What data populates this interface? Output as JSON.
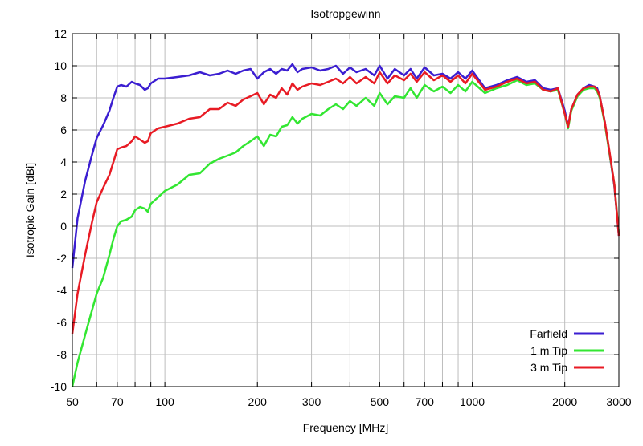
{
  "chart_data": {
    "type": "line",
    "title": "Isotropgewinn",
    "xlabel": "Frequency [MHz]",
    "ylabel": "Isotropic Gain [dBi]",
    "xscale": "log",
    "xlim": [
      50,
      3000
    ],
    "ylim": [
      -10,
      12
    ],
    "grid": true,
    "legend_position": "bottom-right",
    "x_ticks": [
      50,
      70,
      100,
      200,
      300,
      500,
      700,
      1000,
      2000,
      3000
    ],
    "x_tick_labels": [
      "50",
      "70",
      "100",
      "200",
      "300",
      "500",
      "700",
      "1000",
      "2000",
      "3000"
    ],
    "x_minor_grid": [
      60,
      80,
      90,
      400,
      600,
      800,
      900
    ],
    "y_ticks": [
      -10,
      -8,
      -6,
      -4,
      -2,
      0,
      2,
      4,
      6,
      8,
      10,
      12
    ],
    "series": [
      {
        "name": "Farfield",
        "color": "#3b1ed1",
        "x": [
          50,
          52,
          55,
          58,
          60,
          63,
          66,
          68,
          70,
          72,
          75,
          78,
          80,
          83,
          86,
          88,
          90,
          95,
          100,
          110,
          120,
          130,
          140,
          150,
          160,
          170,
          180,
          190,
          200,
          210,
          220,
          230,
          240,
          250,
          260,
          270,
          280,
          300,
          320,
          340,
          360,
          380,
          400,
          420,
          450,
          480,
          500,
          530,
          560,
          600,
          630,
          660,
          700,
          750,
          800,
          850,
          900,
          950,
          1000,
          1100,
          1200,
          1300,
          1400,
          1500,
          1600,
          1700,
          1800,
          1900,
          2000,
          2050,
          2100,
          2200,
          2300,
          2400,
          2500,
          2550,
          2600,
          2700,
          2800,
          2900,
          3000
        ],
        "y": [
          -2.6,
          0.5,
          2.8,
          4.5,
          5.5,
          6.3,
          7.2,
          8.0,
          8.7,
          8.8,
          8.7,
          9.0,
          8.9,
          8.8,
          8.5,
          8.6,
          8.9,
          9.2,
          9.2,
          9.3,
          9.4,
          9.6,
          9.4,
          9.5,
          9.7,
          9.5,
          9.7,
          9.8,
          9.2,
          9.6,
          9.8,
          9.5,
          9.8,
          9.7,
          10.1,
          9.6,
          9.8,
          9.9,
          9.7,
          9.8,
          10.0,
          9.5,
          9.9,
          9.6,
          9.8,
          9.4,
          10.0,
          9.2,
          9.8,
          9.4,
          9.8,
          9.2,
          9.9,
          9.4,
          9.5,
          9.2,
          9.6,
          9.2,
          9.7,
          8.6,
          8.8,
          9.1,
          9.3,
          9.0,
          9.1,
          8.6,
          8.5,
          8.6,
          7.2,
          6.2,
          7.3,
          8.2,
          8.6,
          8.8,
          8.7,
          8.6,
          8.1,
          6.5,
          4.5,
          2.5,
          -0.6
        ]
      },
      {
        "name": "1 m Tip",
        "color": "#33e632",
        "x": [
          50,
          52,
          55,
          58,
          60,
          63,
          66,
          68,
          70,
          72,
          75,
          78,
          80,
          83,
          86,
          88,
          90,
          95,
          100,
          110,
          120,
          130,
          140,
          150,
          160,
          170,
          180,
          190,
          200,
          210,
          220,
          230,
          240,
          250,
          260,
          270,
          280,
          300,
          320,
          340,
          360,
          380,
          400,
          420,
          450,
          480,
          500,
          530,
          560,
          600,
          630,
          660,
          700,
          750,
          800,
          850,
          900,
          950,
          1000,
          1100,
          1200,
          1300,
          1400,
          1500,
          1600,
          1700,
          1800,
          1900,
          2000,
          2050,
          2100,
          2200,
          2300,
          2400,
          2500,
          2550,
          2600,
          2700,
          2800,
          2900,
          3000
        ],
        "y": [
          -10.0,
          -8.5,
          -6.8,
          -5.2,
          -4.2,
          -3.2,
          -1.8,
          -0.8,
          0.0,
          0.3,
          0.4,
          0.6,
          1.0,
          1.2,
          1.1,
          0.9,
          1.4,
          1.8,
          2.2,
          2.6,
          3.2,
          3.3,
          3.9,
          4.2,
          4.4,
          4.6,
          5.0,
          5.3,
          5.6,
          5.0,
          5.7,
          5.6,
          6.2,
          6.3,
          6.8,
          6.4,
          6.7,
          7.0,
          6.9,
          7.3,
          7.6,
          7.3,
          7.8,
          7.5,
          8.0,
          7.5,
          8.3,
          7.6,
          8.1,
          8.0,
          8.6,
          8.0,
          8.8,
          8.4,
          8.7,
          8.3,
          8.8,
          8.4,
          9.0,
          8.3,
          8.6,
          8.8,
          9.1,
          8.8,
          8.9,
          8.5,
          8.4,
          8.5,
          7.0,
          6.1,
          7.2,
          8.1,
          8.5,
          8.6,
          8.6,
          8.4,
          8.0,
          6.4,
          4.5,
          2.6,
          -0.5
        ]
      },
      {
        "name": "3 m Tip",
        "color": "#e81b24",
        "x": [
          50,
          52,
          55,
          58,
          60,
          63,
          66,
          68,
          70,
          72,
          75,
          78,
          80,
          83,
          86,
          88,
          90,
          95,
          100,
          110,
          120,
          130,
          140,
          150,
          160,
          170,
          180,
          190,
          200,
          210,
          220,
          230,
          240,
          250,
          260,
          270,
          280,
          300,
          320,
          340,
          360,
          380,
          400,
          420,
          450,
          480,
          500,
          530,
          560,
          600,
          630,
          660,
          700,
          750,
          800,
          850,
          900,
          950,
          1000,
          1100,
          1200,
          1300,
          1400,
          1500,
          1600,
          1700,
          1800,
          1900,
          2000,
          2050,
          2100,
          2200,
          2300,
          2400,
          2500,
          2550,
          2600,
          2700,
          2800,
          2900,
          3000
        ],
        "y": [
          -6.7,
          -4.2,
          -1.8,
          0.3,
          1.5,
          2.4,
          3.2,
          4.0,
          4.8,
          4.9,
          5.0,
          5.3,
          5.6,
          5.4,
          5.2,
          5.3,
          5.8,
          6.1,
          6.2,
          6.4,
          6.7,
          6.8,
          7.3,
          7.3,
          7.7,
          7.5,
          7.9,
          8.1,
          8.3,
          7.6,
          8.2,
          8.0,
          8.6,
          8.2,
          8.9,
          8.5,
          8.7,
          8.9,
          8.8,
          9.0,
          9.2,
          8.9,
          9.3,
          8.9,
          9.3,
          8.9,
          9.6,
          8.9,
          9.4,
          9.1,
          9.5,
          9.0,
          9.6,
          9.1,
          9.4,
          9.0,
          9.4,
          8.9,
          9.5,
          8.5,
          8.7,
          9.0,
          9.2,
          8.9,
          9.0,
          8.5,
          8.4,
          8.6,
          7.0,
          6.2,
          7.3,
          8.2,
          8.6,
          8.7,
          8.7,
          8.5,
          8.1,
          6.5,
          4.6,
          2.6,
          -0.6
        ]
      }
    ]
  }
}
